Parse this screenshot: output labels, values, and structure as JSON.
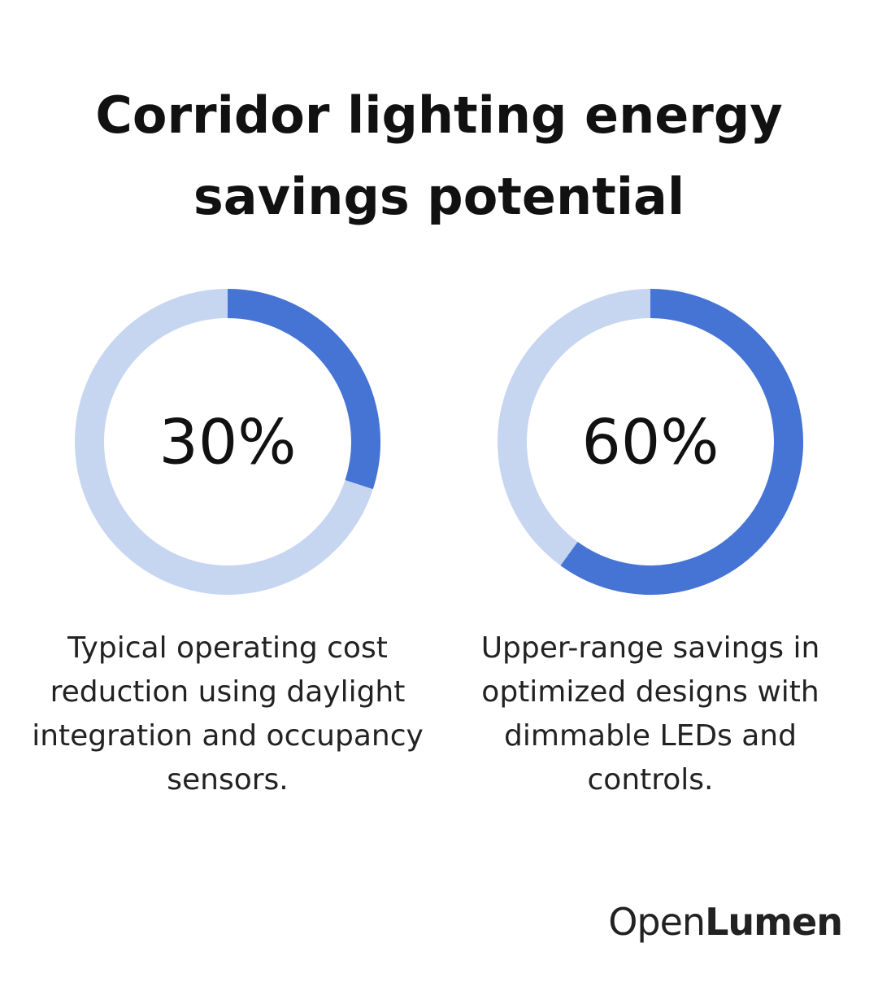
{
  "title": "Corridor lighting energy savings potential",
  "chart_data": [
    {
      "type": "donut",
      "values": [
        30
      ],
      "value_labels": [
        "30%"
      ],
      "color": "#4674d4",
      "track_color": "#c6d5f0",
      "caption": "Typical operating cost reduction using daylight integration and occupancy sensors."
    },
    {
      "type": "donut",
      "values": [
        60
      ],
      "value_labels": [
        "60%"
      ],
      "color": "#4674d4",
      "track_color": "#c6d5f0",
      "caption": "Upper-range savings in optimized designs with dimmable LEDs and controls."
    }
  ],
  "logo": {
    "regular": "Open",
    "bold": "Lumen"
  }
}
